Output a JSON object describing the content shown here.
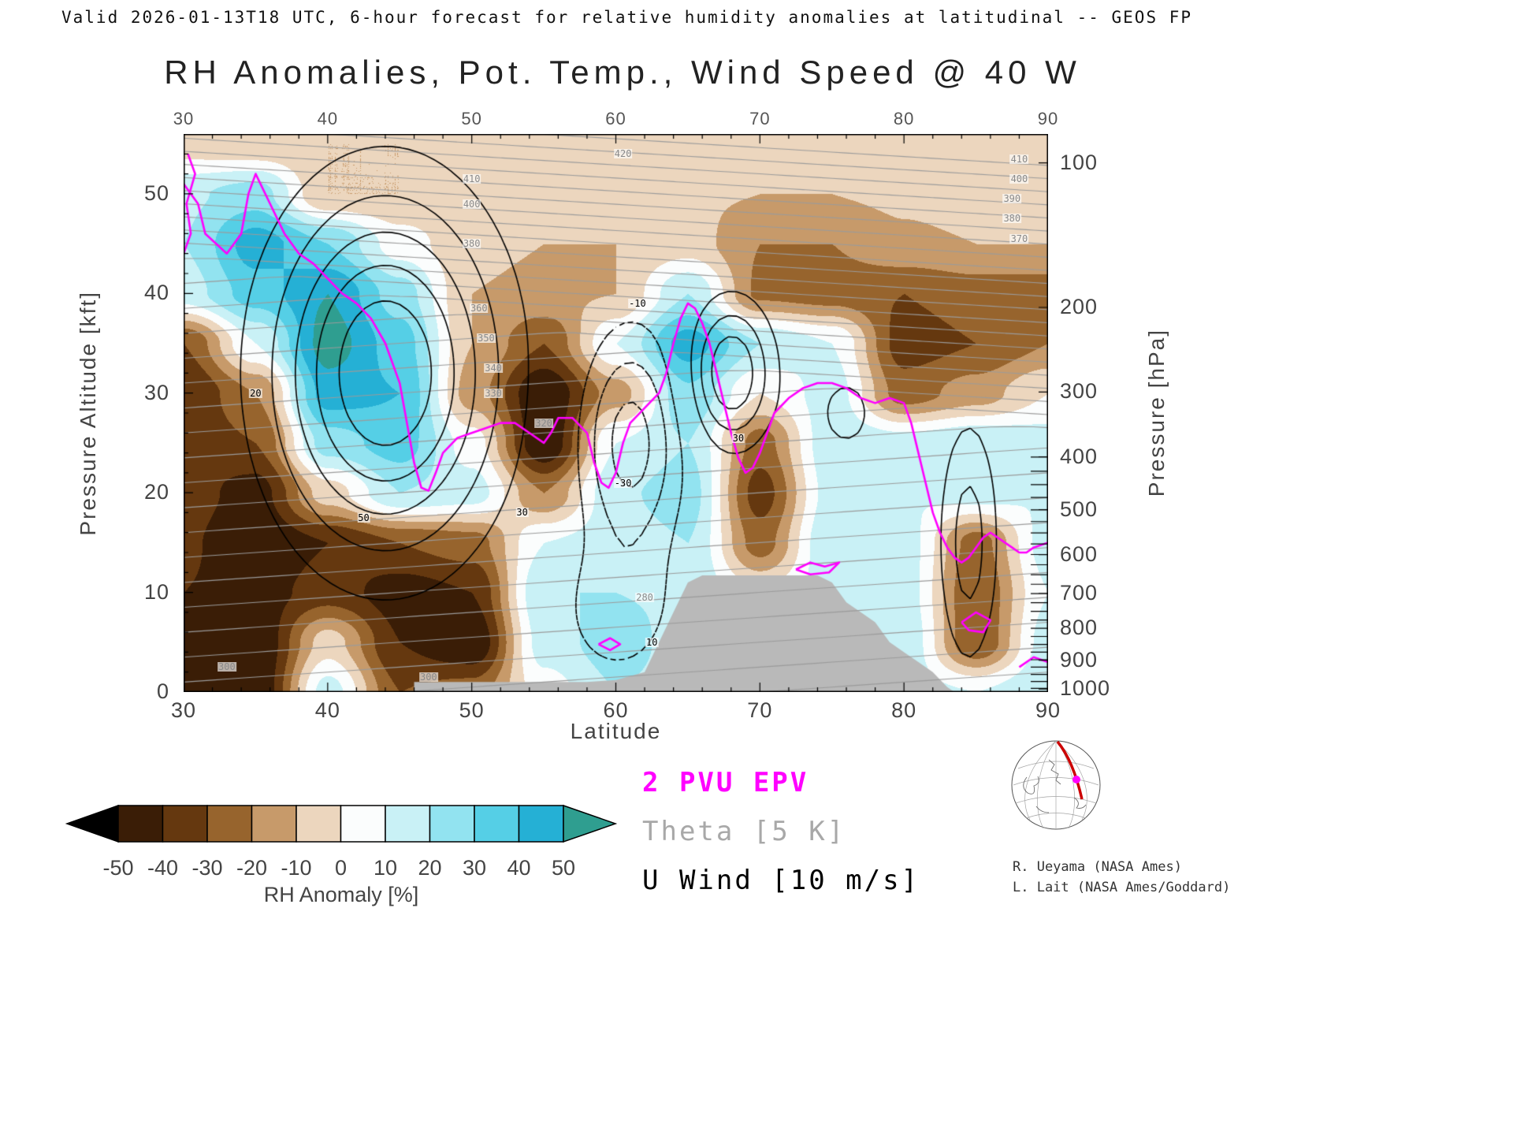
{
  "header": {
    "valid_line": "Valid 2026-01-13T18 UTC, 6-hour forecast for relative humidity anomalies at latitudinal -- GEOS FP"
  },
  "chart_data": {
    "type": "heatmap",
    "title": "RH Anomalies, Pot. Temp., Wind Speed @ 40 W",
    "xlabel": "Latitude",
    "ylabel_left": "Pressure Altitude [kft]",
    "ylabel_right": "Pressure [hPa]",
    "xlim": [
      30,
      90
    ],
    "ylim_kft": [
      0,
      56
    ],
    "x_ticks": [
      "30",
      "40",
      "50",
      "60",
      "70",
      "80",
      "90"
    ],
    "y_ticks_left": [
      "0",
      "10",
      "20",
      "30",
      "40",
      "50"
    ],
    "y_ticks_right": [
      {
        "label": "100",
        "z_kft": 53.1
      },
      {
        "label": "200",
        "z_kft": 38.6
      },
      {
        "label": "300",
        "z_kft": 30.1
      },
      {
        "label": "400",
        "z_kft": 23.6
      },
      {
        "label": "500",
        "z_kft": 18.3
      },
      {
        "label": "600",
        "z_kft": 13.8
      },
      {
        "label": "700",
        "z_kft": 9.9
      },
      {
        "label": "800",
        "z_kft": 6.4
      },
      {
        "label": "900",
        "z_kft": 3.2
      },
      {
        "label": "1000",
        "z_kft": 0.3
      }
    ],
    "rh_anomaly": {
      "units": "%",
      "lats": [
        30,
        35,
        40,
        45,
        50,
        55,
        60,
        65,
        70,
        75,
        80,
        85,
        90
      ],
      "altitudes_kft": [
        0,
        5,
        10,
        15,
        20,
        25,
        30,
        35,
        40,
        45,
        50,
        55
      ],
      "values": [
        [
          -50,
          -45,
          -40,
          -38,
          -35,
          -38,
          -40,
          -30,
          15,
          20,
          18,
          -5
        ],
        [
          -50,
          -50,
          -45,
          -50,
          -45,
          -30,
          -20,
          10,
          35,
          45,
          25,
          -8
        ],
        [
          15,
          -5,
          -35,
          -40,
          -5,
          25,
          45,
          55,
          50,
          30,
          -10,
          -10
        ],
        [
          -30,
          -40,
          -45,
          -30,
          20,
          35,
          40,
          35,
          25,
          5,
          -10,
          -10
        ],
        [
          -25,
          -50,
          -40,
          -25,
          15,
          5,
          -15,
          -10,
          -10,
          -8,
          -8,
          -6
        ],
        [
          5,
          15,
          20,
          10,
          -20,
          -50,
          -50,
          -30,
          -12,
          -10,
          -8,
          -6
        ],
        [
          20,
          25,
          20,
          15,
          18,
          10,
          -15,
          10,
          -10,
          -10,
          -6,
          -5
        ],
        [
          15,
          15,
          18,
          20,
          25,
          20,
          28,
          45,
          20,
          -5,
          -8,
          -5
        ],
        [
          10,
          10,
          0,
          -25,
          -35,
          -25,
          0,
          20,
          -22,
          -20,
          -10,
          -8
        ],
        [
          15,
          15,
          15,
          20,
          15,
          18,
          15,
          10,
          -25,
          -20,
          -10,
          -8
        ],
        [
          15,
          18,
          15,
          15,
          10,
          15,
          -25,
          -35,
          -30,
          -12,
          -8,
          -5
        ],
        [
          10,
          -30,
          -30,
          -25,
          15,
          20,
          -15,
          -30,
          -25,
          -10,
          -5,
          -5
        ],
        [
          20,
          15,
          10,
          15,
          10,
          15,
          0,
          -20,
          -25,
          -10,
          -5,
          -5
        ]
      ]
    },
    "colorbar": {
      "label": "RH Anomaly [%]",
      "levels": [
        -50,
        -40,
        -30,
        -20,
        -10,
        0,
        10,
        20,
        30,
        40,
        50
      ],
      "tick_labels": [
        "-50",
        "-40",
        "-30",
        "-20",
        "-10",
        "0",
        "10",
        "20",
        "30",
        "40",
        "50"
      ],
      "segment_colors": [
        "#3a1d06",
        "#65380f",
        "#97642d",
        "#c79a6a",
        "#ecd6be",
        "#fbfdfd",
        "#c9f1f6",
        "#92e3f0",
        "#55cfe6",
        "#25b0d5"
      ],
      "below_color": "#000000",
      "above_color": "#2f9e90"
    },
    "terrain_mask": {
      "color": "#b9b9b9",
      "profile_lat_kft": [
        [
          46,
          0
        ],
        [
          46,
          1
        ],
        [
          58,
          1
        ],
        [
          60,
          1.2
        ],
        [
          62,
          2
        ],
        [
          63,
          5
        ],
        [
          64,
          8
        ],
        [
          65,
          11
        ],
        [
          66,
          11.7
        ],
        [
          74,
          11.7
        ],
        [
          75,
          11
        ],
        [
          76,
          9
        ],
        [
          77,
          8
        ],
        [
          78,
          7
        ],
        [
          79,
          5
        ],
        [
          80,
          4
        ],
        [
          81,
          3
        ],
        [
          82,
          2
        ],
        [
          83,
          0.5
        ],
        [
          83.5,
          0
        ]
      ]
    },
    "pvu_line": {
      "label": "2 PVU EPV",
      "color": "#ff00ff",
      "paths": [
        [
          [
            30,
            51
          ],
          [
            31,
            49
          ],
          [
            31.5,
            46
          ],
          [
            33,
            44
          ],
          [
            34,
            46
          ],
          [
            34.5,
            50
          ],
          [
            35,
            52
          ],
          [
            36,
            49
          ],
          [
            37,
            46
          ],
          [
            38,
            44
          ],
          [
            39,
            43
          ],
          [
            40,
            41.5
          ],
          [
            41,
            40
          ],
          [
            42,
            39
          ],
          [
            43,
            37.5
          ],
          [
            44,
            35
          ],
          [
            45,
            31
          ],
          [
            45.5,
            27
          ],
          [
            46,
            23
          ],
          [
            46.5,
            20.5
          ],
          [
            47,
            20.2
          ],
          [
            47.5,
            22
          ],
          [
            48,
            24
          ],
          [
            49,
            25.5
          ],
          [
            50,
            26
          ],
          [
            51,
            26.5
          ],
          [
            52,
            27
          ],
          [
            53,
            27
          ],
          [
            54,
            26
          ],
          [
            55,
            25
          ],
          [
            55.5,
            26
          ],
          [
            56,
            27.5
          ],
          [
            57,
            27.5
          ],
          [
            58,
            26
          ],
          [
            58.5,
            23
          ],
          [
            59,
            21
          ],
          [
            59.5,
            20.5
          ],
          [
            60,
            22
          ],
          [
            60.5,
            25
          ],
          [
            61,
            27
          ],
          [
            62,
            28.5
          ],
          [
            63,
            30
          ],
          [
            63.5,
            32
          ],
          [
            64,
            35
          ],
          [
            64.5,
            37.5
          ],
          [
            65,
            39
          ],
          [
            65.5,
            38.5
          ],
          [
            66,
            37
          ],
          [
            66.5,
            35
          ],
          [
            67,
            32
          ],
          [
            67.5,
            29
          ],
          [
            68,
            26
          ],
          [
            68.5,
            23.5
          ],
          [
            69,
            22
          ],
          [
            69.5,
            22.5
          ],
          [
            70,
            24
          ],
          [
            70.5,
            26
          ],
          [
            71,
            28
          ],
          [
            72,
            29.5
          ],
          [
            73,
            30.5
          ],
          [
            74,
            31
          ],
          [
            75,
            31
          ],
          [
            76,
            30.5
          ],
          [
            77,
            29.5
          ],
          [
            78,
            29
          ],
          [
            79,
            29.5
          ],
          [
            80,
            29
          ],
          [
            80.5,
            27
          ],
          [
            81,
            24
          ],
          [
            81.5,
            21
          ],
          [
            82,
            18
          ],
          [
            82.5,
            16
          ],
          [
            83,
            14.5
          ],
          [
            83.5,
            13.5
          ],
          [
            84,
            13
          ],
          [
            84.5,
            13.5
          ],
          [
            85,
            14.5
          ],
          [
            85.5,
            15.5
          ],
          [
            86,
            16
          ],
          [
            86.5,
            15.5
          ],
          [
            87,
            15
          ],
          [
            87.5,
            14.5
          ],
          [
            88,
            14
          ],
          [
            88.5,
            14
          ],
          [
            89,
            14.5
          ],
          [
            90,
            15
          ]
        ],
        [
          [
            30,
            44
          ],
          [
            30.5,
            46
          ],
          [
            30.2,
            49
          ],
          [
            30.8,
            52
          ],
          [
            30.3,
            54
          ]
        ],
        [
          [
            72.5,
            12.3
          ],
          [
            73.5,
            13
          ],
          [
            74.5,
            12.6
          ],
          [
            75.5,
            13
          ],
          [
            74.8,
            12
          ],
          [
            73.5,
            11.8
          ],
          [
            72.5,
            12.3
          ]
        ],
        [
          [
            84,
            7
          ],
          [
            85,
            8
          ],
          [
            86,
            7.2
          ],
          [
            85.5,
            6
          ],
          [
            84.5,
            6.2
          ],
          [
            84,
            7
          ]
        ],
        [
          [
            58.8,
            4.8
          ],
          [
            59.6,
            5.4
          ],
          [
            60.3,
            4.8
          ],
          [
            59.6,
            4.2
          ],
          [
            58.8,
            4.8
          ]
        ],
        [
          [
            88,
            2.5
          ],
          [
            89,
            3.5
          ],
          [
            90,
            3
          ]
        ]
      ]
    },
    "theta_contours": {
      "label": "Theta [5 K]",
      "color": "#9b9b9b",
      "interval_K": 5,
      "min_K": 280,
      "max_K": 430,
      "labels": [
        {
          "t": "420",
          "lat": 60.5,
          "z": 54
        },
        {
          "t": "410",
          "lat": 50,
          "z": 51.5
        },
        {
          "t": "400",
          "lat": 50,
          "z": 49
        },
        {
          "t": "380",
          "lat": 50,
          "z": 45
        },
        {
          "t": "360",
          "lat": 50.5,
          "z": 38.5
        },
        {
          "t": "350",
          "lat": 51,
          "z": 35.5
        },
        {
          "t": "340",
          "lat": 51.5,
          "z": 32.5
        },
        {
          "t": "330",
          "lat": 51.5,
          "z": 30
        },
        {
          "t": "320",
          "lat": 55,
          "z": 27
        },
        {
          "t": "410",
          "lat": 88,
          "z": 53.5
        },
        {
          "t": "400",
          "lat": 88,
          "z": 51.5
        },
        {
          "t": "390",
          "lat": 87.5,
          "z": 49.5
        },
        {
          "t": "380",
          "lat": 87.5,
          "z": 47.5
        },
        {
          "t": "370",
          "lat": 88,
          "z": 45.5
        },
        {
          "t": "300",
          "lat": 33,
          "z": 2.5
        },
        {
          "t": "280",
          "lat": 62,
          "z": 9.5
        },
        {
          "t": "300",
          "lat": 47,
          "z": 1.5
        }
      ]
    },
    "u_wind_contours": {
      "label": "U Wind [10 m/s]",
      "color": "#000000",
      "interval_ms": 10,
      "negative_style": "dashed",
      "jet_features": [
        {
          "lat": 44,
          "z_kft": 32,
          "peak_ms": 60,
          "lat_sigma": 7.5,
          "z_sigma": 17
        },
        {
          "lat": 68,
          "z_kft": 32,
          "peak_ms": 40,
          "lat_sigma": 2.8,
          "z_sigma": 7
        },
        {
          "lat": 76,
          "z_kft": 28,
          "peak_ms": 12,
          "lat_sigma": 3,
          "z_sigma": 6
        },
        {
          "lat": 84.5,
          "z_kft": 15,
          "peak_ms": 25,
          "lat_sigma": 2,
          "z_sigma": 12
        },
        {
          "lat": 61,
          "z_kft": 25,
          "peak_ms": -35,
          "lat_sigma": 3.5,
          "z_sigma": 11
        },
        {
          "lat": 60,
          "z_kft": 8,
          "peak_ms": -15,
          "lat_sigma": 4,
          "z_sigma": 7
        }
      ],
      "labels": [
        {
          "t": "50",
          "lat": 42.5,
          "z": 17.5
        },
        {
          "t": "30",
          "lat": 53.5,
          "z": 18
        },
        {
          "t": "-10",
          "lat": 61.5,
          "z": 39
        },
        {
          "t": "-30",
          "lat": 60.5,
          "z": 21
        },
        {
          "t": "30",
          "lat": 68.5,
          "z": 25.5
        },
        {
          "t": "10",
          "lat": 62.5,
          "z": 5
        },
        {
          "t": "20",
          "lat": 35,
          "z": 30
        }
      ]
    }
  },
  "legend": {
    "entries": [
      {
        "label": "2 PVU EPV",
        "color": "#ff00ff"
      },
      {
        "label": "Theta [5 K]",
        "color": "#a8a8a8"
      },
      {
        "label": "U Wind [10 m/s]",
        "color": "#000000"
      }
    ]
  },
  "credits": {
    "line1": "R. Ueyama (NASA Ames)",
    "line2": "L. Lait (NASA Ames/Goddard)"
  }
}
